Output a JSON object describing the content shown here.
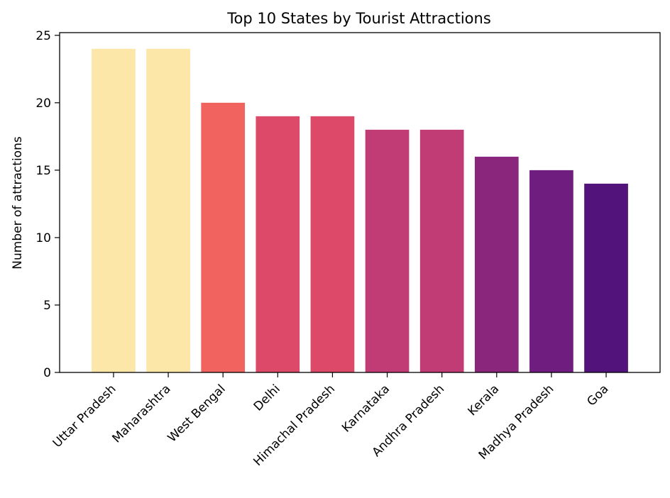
{
  "chart_data": {
    "type": "bar",
    "title": "Top 10 States by Tourist Attractions",
    "xlabel": "",
    "ylabel": "Number of attractions",
    "categories": [
      "Uttar Pradesh",
      "Maharashtra",
      "West Bengal",
      "Delhi",
      "Himachal Pradesh",
      "Karnataka",
      "Andhra Pradesh",
      "Kerala",
      "Madhya Pradesh",
      "Goa"
    ],
    "values": [
      24,
      24,
      20,
      19,
      19,
      18,
      18,
      16,
      15,
      14
    ],
    "colors": [
      "#fce6a8",
      "#fce6a8",
      "#f0635e",
      "#dd4968",
      "#dd4968",
      "#c13b75",
      "#c13b75",
      "#8a267c",
      "#6f1d7e",
      "#52137b"
    ],
    "ylim": [
      0,
      25.2
    ],
    "yticks": [
      0,
      5,
      10,
      15,
      20,
      25
    ],
    "grid": false,
    "legend": "none"
  }
}
